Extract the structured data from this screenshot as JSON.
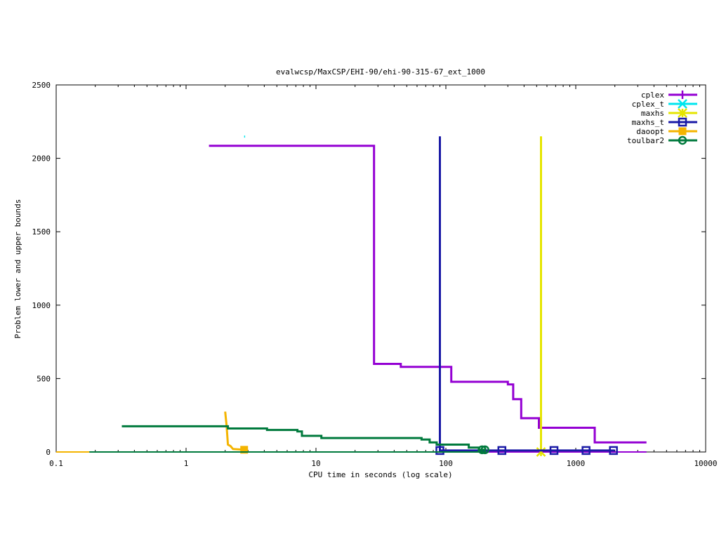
{
  "chart_data": {
    "type": "line",
    "title": "evalwcsp/MaxCSP/EHI-90/ehi-90-315-67_ext_1000",
    "xlabel": "CPU time in seconds (log scale)",
    "ylabel": "Problem lower and upper bounds",
    "xscale": "log",
    "xlim": [
      0.1,
      10000
    ],
    "ylim": [
      0,
      2500
    ],
    "xticks": [
      {
        "value": 0.1,
        "label": "0.1"
      },
      {
        "value": 1,
        "label": "1"
      },
      {
        "value": 10,
        "label": "10"
      },
      {
        "value": 100,
        "label": "100"
      },
      {
        "value": 1000,
        "label": "1000"
      },
      {
        "value": 10000,
        "label": "10000"
      }
    ],
    "yticks": [
      {
        "value": 0,
        "label": "0"
      },
      {
        "value": 500,
        "label": "500"
      },
      {
        "value": 1000,
        "label": "1000"
      },
      {
        "value": 1500,
        "label": "1500"
      },
      {
        "value": 2000,
        "label": "2000"
      },
      {
        "value": 2500,
        "label": "2500"
      }
    ],
    "grid": false,
    "legend_position": "top-right",
    "series": [
      {
        "name": "cplex",
        "color": "#9400d3",
        "marker": "plus",
        "points": [
          [
            1.5,
            2085
          ],
          [
            28,
            2085
          ],
          [
            28,
            600
          ],
          [
            45,
            600
          ],
          [
            45,
            580
          ],
          [
            110,
            580
          ],
          [
            110,
            478
          ],
          [
            300,
            478
          ],
          [
            300,
            460
          ],
          [
            330,
            460
          ],
          [
            330,
            360
          ],
          [
            380,
            360
          ],
          [
            380,
            230
          ],
          [
            520,
            230
          ],
          [
            520,
            165
          ],
          [
            1400,
            165
          ],
          [
            1400,
            65
          ],
          [
            3500,
            65
          ]
        ],
        "lower_points": [
          [
            0.18,
            0
          ],
          [
            3500,
            0
          ]
        ],
        "markers": []
      },
      {
        "name": "cplex_t",
        "color": "#00e5ee",
        "marker": "cross",
        "points": [
          [
            2.8,
            2148
          ],
          [
            2.85,
            2148
          ]
        ],
        "lower_points": [],
        "markers": []
      },
      {
        "name": "maxhs",
        "color": "#e5e500",
        "marker": "star",
        "points": [
          [
            540,
            2150
          ],
          [
            540,
            0
          ]
        ],
        "lower_points": [],
        "markers": [
          [
            540,
            0
          ]
        ]
      },
      {
        "name": "maxhs_t",
        "color": "#1a1aa6",
        "marker": "square",
        "points": [
          [
            90,
            2150
          ],
          [
            90,
            10
          ],
          [
            2000,
            10
          ]
        ],
        "lower_points": [],
        "markers": [
          [
            90,
            10
          ],
          [
            270,
            10
          ],
          [
            680,
            10
          ],
          [
            1200,
            10
          ],
          [
            1950,
            10
          ]
        ]
      },
      {
        "name": "daoopt",
        "color": "#f4b400",
        "marker": "filled-square",
        "points": [
          [
            2.0,
            275
          ],
          [
            2.05,
            180
          ],
          [
            2.1,
            50
          ],
          [
            2.2,
            40
          ],
          [
            2.3,
            20
          ],
          [
            2.8,
            15
          ]
        ],
        "lower_points": [
          [
            0.1,
            0
          ],
          [
            2.8,
            0
          ]
        ],
        "markers": [
          [
            2.8,
            15
          ]
        ]
      },
      {
        "name": "toulbar2",
        "color": "#007a3d",
        "marker": "circle",
        "points": [
          [
            0.32,
            175
          ],
          [
            2.1,
            175
          ],
          [
            2.1,
            160
          ],
          [
            4.2,
            160
          ],
          [
            4.2,
            150
          ],
          [
            7.2,
            150
          ],
          [
            7.2,
            140
          ],
          [
            7.8,
            140
          ],
          [
            7.8,
            110
          ],
          [
            11,
            110
          ],
          [
            11,
            95
          ],
          [
            65,
            95
          ],
          [
            65,
            85
          ],
          [
            75,
            85
          ],
          [
            75,
            65
          ],
          [
            85,
            65
          ],
          [
            85,
            50
          ],
          [
            150,
            50
          ],
          [
            150,
            30
          ],
          [
            180,
            30
          ],
          [
            180,
            15
          ],
          [
            200,
            15
          ]
        ],
        "lower_points": [
          [
            0.18,
            0
          ],
          [
            200,
            0
          ]
        ],
        "markers": [
          [
            190,
            15
          ],
          [
            200,
            15
          ]
        ]
      }
    ]
  }
}
